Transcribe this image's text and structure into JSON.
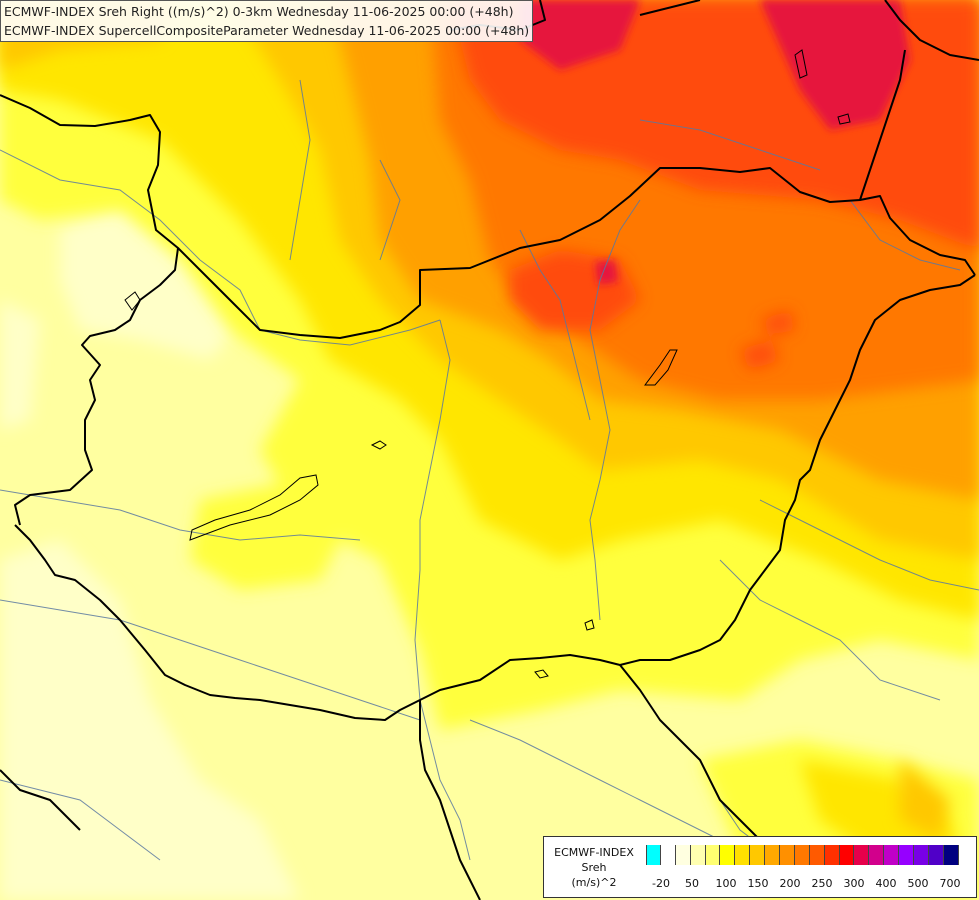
{
  "title_lines": [
    "ECMWF-INDEX Sreh Right ((m/s)^2) 0-3km Wednesday 11-06-2025 00:00 (+48h)",
    "ECMWF-INDEX SupercellCompositeParameter Wednesday 11-06-2025 00:00 (+48h)"
  ],
  "legend": {
    "label_line1": "ECMWF-INDEX",
    "label_line2": "Sreh",
    "label_line3": "(m/s)^2",
    "colors": [
      "#00ffff",
      "#ffffff",
      "#ffffe0",
      "#ffffb0",
      "#ffff70",
      "#ffff00",
      "#ffe000",
      "#ffc800",
      "#ffa800",
      "#ff9000",
      "#ff7800",
      "#ff5a00",
      "#ff3000",
      "#ff0000",
      "#e6004b",
      "#d2008c",
      "#c000c8",
      "#9600ff",
      "#7800e6",
      "#5000c8",
      "#000080"
    ],
    "ticks": [
      "-20",
      "50",
      "100",
      "150",
      "200",
      "250",
      "300",
      "400",
      "500",
      "700"
    ]
  },
  "map_colors": {
    "pale": "#ffffc8",
    "light_yellow": "#ffffa0",
    "yellow": "#ffff3c",
    "gold": "#ffe600",
    "amber": "#ffc800",
    "orange": "#ffa000",
    "dark_orange": "#ff7800",
    "red_orange": "#ff4b0a",
    "red": "#e6143c",
    "border": "#000000",
    "river": "#5a78a0"
  }
}
